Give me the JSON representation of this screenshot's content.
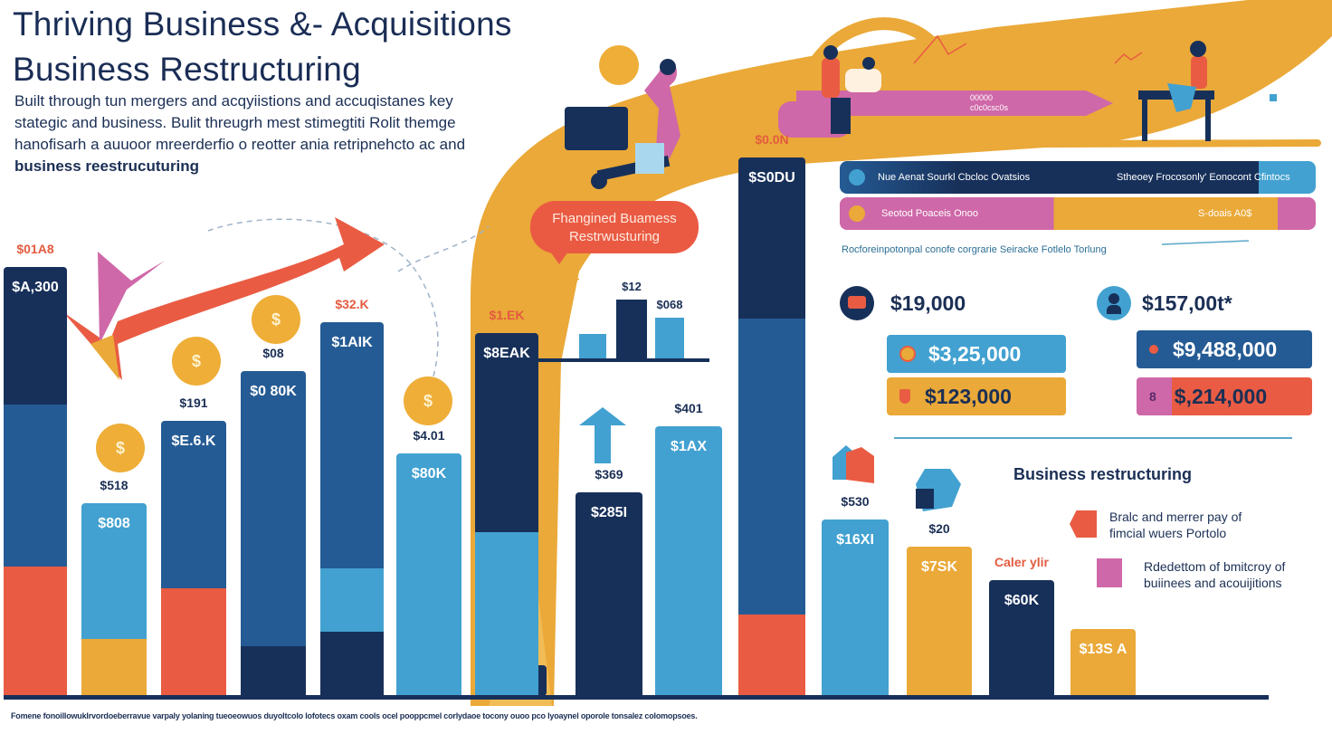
{
  "header": {
    "title_line1": "Thriving Business &- Acquisitions",
    "title_line2": "Business Restructuring",
    "subtitle_lines": [
      "Built through tun mergers and acqyiistions and accuqistanes key",
      "stategic and business.  Bulit threugrh mest stimegtiti Rolit themge",
      "hanofisarh a auuoor mreerderfio o reotter ania retripnehcto ac and",
      "business reestrucuturing"
    ]
  },
  "colors": {
    "navy": "#17305a",
    "blue": "#255b94",
    "light_blue": "#42a1d0",
    "coral": "#e95c43",
    "gold": "#eaa938",
    "pink": "#cf68a8",
    "text": "#1b2f55"
  },
  "chart_data": {
    "type": "bar",
    "title": "Thriving Business &- Acquisitions Business Restructuring",
    "xlabel": "",
    "ylabel": "",
    "grid": false,
    "legend_position": "right",
    "note": "Stacked/segmented bars; values as approximate share of tallest bar (relative height, 0-100)",
    "bars": [
      {
        "name": "bar-1",
        "label": "$A,300",
        "top_label": "$01A8",
        "top_label_color": "coral",
        "value": 78,
        "segments": [
          {
            "color": "coral",
            "share": 0.3
          },
          {
            "color": "blue",
            "share": 0.38
          },
          {
            "color": "navy",
            "share": 0.32
          }
        ]
      },
      {
        "name": "bar-2",
        "label": "$808",
        "top_label": "$518",
        "top_label_color": "navy",
        "value": 35,
        "segments": [
          {
            "color": "gold",
            "share": 0.29
          },
          {
            "color": "light_blue",
            "share": 0.71
          }
        ]
      },
      {
        "name": "bar-3",
        "label": "$E.6.K",
        "top_label": "$191",
        "top_label_color": "navy",
        "value": 50,
        "segments": [
          {
            "color": "coral",
            "share": 0.39
          },
          {
            "color": "blue",
            "share": 0.61
          }
        ]
      },
      {
        "name": "bar-4",
        "label": "$0 80K",
        "top_label": "$08",
        "top_label_color": "navy",
        "value": 59,
        "segments": [
          {
            "color": "navy",
            "share": 0.15
          },
          {
            "color": "blue",
            "share": 0.85
          }
        ]
      },
      {
        "name": "bar-5",
        "label": "$1AIK",
        "top_label": "$32.K",
        "top_label_color": "coral",
        "value": 68,
        "segments": [
          {
            "color": "navy",
            "share": 0.17
          },
          {
            "color": "light_blue",
            "share": 0.17
          },
          {
            "color": "blue",
            "share": 0.66
          }
        ]
      },
      {
        "name": "bar-6",
        "label": "$80K",
        "top_label": "$4.01",
        "top_label_color": "navy",
        "value": 44,
        "segments": [
          {
            "color": "light_blue",
            "share": 1.0
          }
        ]
      },
      {
        "name": "bar-7",
        "label": "$8EAK",
        "top_label": "$1.EK",
        "top_label_color": "coral",
        "value": 66,
        "segments": [
          {
            "color": "light_blue",
            "share": 0.45
          },
          {
            "color": "navy",
            "share": 0.55
          }
        ]
      },
      {
        "name": "bar-8",
        "label": "$285I",
        "top_label": "$369",
        "top_label_color": "navy",
        "value": 37,
        "segments": [
          {
            "color": "navy",
            "share": 1.0
          }
        ]
      },
      {
        "name": "bar-9",
        "label": "$1AX",
        "top_label": "$401",
        "top_label_color": "navy",
        "value": 49,
        "segments": [
          {
            "color": "light_blue",
            "share": 1.0
          }
        ]
      },
      {
        "name": "bar-10",
        "label": "$S0DU",
        "top_label": "$0.0N",
        "top_label_color": "coral",
        "value": 98,
        "segments": [
          {
            "color": "coral",
            "share": 0.15
          },
          {
            "color": "blue",
            "share": 0.55
          },
          {
            "color": "navy",
            "share": 0.3
          }
        ]
      },
      {
        "name": "bar-11",
        "label": "$16XI",
        "top_label": "$530",
        "top_label_color": "navy",
        "value": 32,
        "segments": [
          {
            "color": "light_blue",
            "share": 1.0
          }
        ]
      },
      {
        "name": "bar-12",
        "label": "$7SK",
        "top_label": "$20",
        "top_label_color": "navy",
        "value": 27,
        "segments": [
          {
            "color": "gold",
            "share": 1.0
          }
        ]
      },
      {
        "name": "bar-13",
        "label": "$60K",
        "top_label": "Caler ylir",
        "top_label_color": "coral",
        "value": 21,
        "segments": [
          {
            "color": "navy",
            "share": 1.0
          }
        ]
      },
      {
        "name": "bar-14",
        "label": "$13S A",
        "top_label": "",
        "top_label_color": "navy",
        "value": 12,
        "segments": [
          {
            "color": "gold",
            "share": 1.0
          }
        ]
      }
    ],
    "mini_chart": {
      "type": "bar",
      "values": [
        30,
        72,
        50
      ],
      "labels": [
        "",
        "$12",
        "$068"
      ],
      "colors": [
        "light_blue",
        "navy",
        "light_blue"
      ]
    }
  },
  "callout": {
    "line1": "Fhangined Buamess",
    "line2": "Restrwusturing"
  },
  "top_banner": {
    "line1": "00000",
    "line2": "c0c0csc0s"
  },
  "ribbons": [
    {
      "left": "Nue Aenat Sourkl Cbcloc Ovatsios",
      "right": "Stheoey Frocosonly' Eonocont Cfintocs"
    },
    {
      "left": "Seotod Poaceis Onoo",
      "right": "S-doais A0$"
    }
  ],
  "ribbon_caption": "Rocforeinpotonpal conofe corgrarie Seiracke Fotlelo Torlung",
  "stats": {
    "left": {
      "headline": "$19,000",
      "card1": "$3,25,000",
      "card2": "$123,000"
    },
    "right": {
      "headline": "$157,00t*",
      "card1": "$9,488,000",
      "card2": "$,214,000"
    }
  },
  "legend": {
    "title": "Business restructuring",
    "items": [
      {
        "icon": "tag-icon",
        "color": "coral",
        "line1": "Bralc and merrer pay of",
        "line2": "fimcial wuers Portolo"
      },
      {
        "icon": "person-card-icon",
        "color": "pink",
        "line1": "Rdedettom of bmitcroy of",
        "line2": "buiinees and acouijitions"
      }
    ]
  },
  "footnote": "Fomene fonoillowuklrvordoeberravue varpaly yolaning tueoeowuos duyoltcolo lofotecs oxam cools ocel pooppcmel corlydaoe tocony ouoo pco lyoaynel oporole tonsalez colomopsoes."
}
